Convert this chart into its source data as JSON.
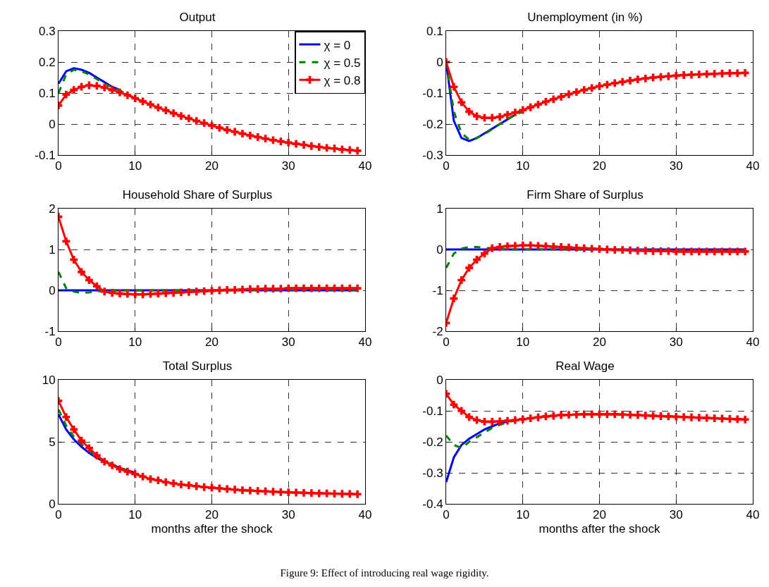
{
  "chart_data": [
    {
      "type": "line",
      "title": "Output",
      "x": [
        0,
        1,
        2,
        3,
        4,
        5,
        6,
        7,
        8,
        9,
        10,
        11,
        12,
        13,
        14,
        15,
        16,
        17,
        18,
        19,
        20,
        21,
        22,
        23,
        24,
        25,
        26,
        27,
        28,
        29,
        30,
        31,
        32,
        33,
        34,
        35,
        36,
        37,
        38,
        39
      ],
      "xlim": [
        0,
        40
      ],
      "xticks": [
        0,
        10,
        20,
        30,
        40
      ],
      "ylim": [
        -0.1,
        0.3
      ],
      "yticks": [
        -0.1,
        0,
        0.1,
        0.2,
        0.3
      ],
      "grid": true,
      "legend": "top right",
      "series": [
        {
          "name": "χ = 0",
          "color": "#0000ff",
          "line_style": "solid",
          "marker": "none",
          "x": [
            0,
            1,
            2,
            3,
            4,
            5,
            6,
            7,
            8
          ],
          "values": [
            0.13,
            0.17,
            0.18,
            0.175,
            0.165,
            0.15,
            0.135,
            0.12,
            0.11
          ]
        },
        {
          "name": "χ = 0.5",
          "color": "#008000",
          "line_style": "dashed",
          "marker": "none",
          "x": [
            0,
            1,
            2,
            3,
            4,
            5,
            6,
            7,
            8,
            10
          ],
          "values": [
            0.1,
            0.16,
            0.175,
            0.17,
            0.16,
            0.145,
            0.13,
            0.118,
            0.108,
            0.083
          ]
        },
        {
          "name": "χ = 0.8",
          "color": "#ff0000",
          "line_style": "solid",
          "marker": "cross",
          "values": [
            0.06,
            0.095,
            0.11,
            0.12,
            0.125,
            0.123,
            0.118,
            0.11,
            0.102,
            0.093,
            0.083,
            0.073,
            0.063,
            0.053,
            0.044,
            0.035,
            0.026,
            0.018,
            0.01,
            0.003,
            -0.005,
            -0.012,
            -0.019,
            -0.025,
            -0.031,
            -0.037,
            -0.042,
            -0.047,
            -0.052,
            -0.056,
            -0.06,
            -0.064,
            -0.067,
            -0.071,
            -0.074,
            -0.077,
            -0.079,
            -0.082,
            -0.084,
            -0.086
          ]
        }
      ]
    },
    {
      "type": "line",
      "title": "Unemployment (in %)",
      "x": [
        0,
        1,
        2,
        3,
        4,
        5,
        6,
        7,
        8,
        9,
        10,
        11,
        12,
        13,
        14,
        15,
        16,
        17,
        18,
        19,
        20,
        21,
        22,
        23,
        24,
        25,
        26,
        27,
        28,
        29,
        30,
        31,
        32,
        33,
        34,
        35,
        36,
        37,
        38,
        39
      ],
      "xlim": [
        0,
        40
      ],
      "xticks": [
        0,
        10,
        20,
        30,
        40
      ],
      "ylim": [
        -0.3,
        0.1
      ],
      "yticks": [
        -0.3,
        -0.2,
        -0.1,
        0,
        0.1
      ],
      "grid": true,
      "series": [
        {
          "color": "#0000ff",
          "line_style": "solid",
          "marker": "none",
          "x": [
            0,
            1,
            2,
            3,
            4,
            5,
            6,
            7,
            8,
            9
          ],
          "values": [
            0,
            -0.19,
            -0.245,
            -0.255,
            -0.245,
            -0.23,
            -0.215,
            -0.2,
            -0.185,
            -0.17
          ]
        },
        {
          "color": "#008000",
          "line_style": "dashed",
          "marker": "none",
          "x": [
            0,
            1,
            2,
            3,
            4,
            5,
            6,
            7,
            8,
            9,
            10
          ],
          "values": [
            0,
            -0.16,
            -0.23,
            -0.25,
            -0.245,
            -0.232,
            -0.217,
            -0.2,
            -0.185,
            -0.17,
            -0.16
          ]
        },
        {
          "color": "#ff0000",
          "line_style": "solid",
          "marker": "cross",
          "values": [
            0,
            -0.08,
            -0.13,
            -0.16,
            -0.175,
            -0.18,
            -0.18,
            -0.177,
            -0.17,
            -0.163,
            -0.155,
            -0.146,
            -0.137,
            -0.128,
            -0.12,
            -0.112,
            -0.104,
            -0.097,
            -0.09,
            -0.084,
            -0.078,
            -0.073,
            -0.068,
            -0.064,
            -0.06,
            -0.056,
            -0.053,
            -0.05,
            -0.048,
            -0.046,
            -0.044,
            -0.042,
            -0.041,
            -0.04,
            -0.039,
            -0.038,
            -0.037,
            -0.036,
            -0.036,
            -0.035
          ]
        }
      ]
    },
    {
      "type": "line",
      "title": "Household Share of Surplus",
      "x": [
        0,
        1,
        2,
        3,
        4,
        5,
        6,
        7,
        8,
        9,
        10,
        11,
        12,
        13,
        14,
        15,
        16,
        17,
        18,
        19,
        20,
        21,
        22,
        23,
        24,
        25,
        26,
        27,
        28,
        29,
        30,
        31,
        32,
        33,
        34,
        35,
        36,
        37,
        38,
        39
      ],
      "xlim": [
        0,
        40
      ],
      "xticks": [
        0,
        10,
        20,
        30,
        40
      ],
      "ylim": [
        -1,
        2
      ],
      "yticks": [
        -1,
        0,
        1,
        2
      ],
      "grid": true,
      "series": [
        {
          "color": "#0000ff",
          "line_style": "solid",
          "marker": "none",
          "x": [
            0,
            10,
            20,
            30,
            39
          ],
          "values": [
            0,
            0,
            0,
            0,
            0
          ]
        },
        {
          "color": "#008000",
          "line_style": "dashed",
          "marker": "none",
          "x": [
            0,
            1,
            2,
            3,
            4,
            5,
            6,
            8,
            10,
            20,
            30,
            39
          ],
          "values": [
            0.45,
            0.05,
            -0.03,
            -0.06,
            -0.05,
            -0.03,
            -0.01,
            0,
            0,
            0,
            0.02,
            0.02
          ]
        },
        {
          "color": "#ff0000",
          "line_style": "solid",
          "marker": "cross",
          "values": [
            1.8,
            1.2,
            0.75,
            0.45,
            0.25,
            0.1,
            -0.03,
            -0.06,
            -0.08,
            -0.09,
            -0.1,
            -0.1,
            -0.09,
            -0.08,
            -0.07,
            -0.06,
            -0.05,
            -0.04,
            -0.03,
            -0.02,
            -0.01,
            0,
            0.01,
            0.01,
            0.02,
            0.03,
            0.03,
            0.04,
            0.04,
            0.04,
            0.05,
            0.05,
            0.05,
            0.05,
            0.05,
            0.05,
            0.05,
            0.05,
            0.05,
            0.05
          ]
        }
      ]
    },
    {
      "type": "line",
      "title": "Firm Share of Surplus",
      "x": [
        0,
        1,
        2,
        3,
        4,
        5,
        6,
        7,
        8,
        9,
        10,
        11,
        12,
        13,
        14,
        15,
        16,
        17,
        18,
        19,
        20,
        21,
        22,
        23,
        24,
        25,
        26,
        27,
        28,
        29,
        30,
        31,
        32,
        33,
        34,
        35,
        36,
        37,
        38,
        39
      ],
      "xlim": [
        0,
        40
      ],
      "xticks": [
        0,
        10,
        20,
        30,
        40
      ],
      "ylim": [
        -2,
        1
      ],
      "yticks": [
        -2,
        -1,
        0,
        1
      ],
      "grid": true,
      "series": [
        {
          "color": "#0000ff",
          "line_style": "solid",
          "marker": "none",
          "x": [
            0,
            10,
            20,
            30,
            39
          ],
          "values": [
            0,
            0,
            0,
            0,
            0
          ]
        },
        {
          "color": "#008000",
          "line_style": "dashed",
          "marker": "none",
          "x": [
            0,
            1,
            2,
            3,
            4,
            5,
            6,
            8,
            10,
            20,
            30,
            39
          ],
          "values": [
            -0.45,
            -0.1,
            0.02,
            0.06,
            0.06,
            0.04,
            0.02,
            0,
            0,
            0,
            -0.02,
            -0.02
          ]
        },
        {
          "color": "#ff0000",
          "line_style": "solid",
          "marker": "cross",
          "values": [
            -1.8,
            -1.2,
            -0.75,
            -0.45,
            -0.25,
            -0.1,
            0.03,
            0.06,
            0.08,
            0.09,
            0.1,
            0.1,
            0.09,
            0.08,
            0.07,
            0.06,
            0.05,
            0.04,
            0.03,
            0.02,
            0.01,
            0,
            -0.01,
            -0.01,
            -0.02,
            -0.03,
            -0.03,
            -0.04,
            -0.04,
            -0.04,
            -0.05,
            -0.05,
            -0.05,
            -0.05,
            -0.05,
            -0.05,
            -0.05,
            -0.05,
            -0.05,
            -0.05
          ]
        }
      ]
    },
    {
      "type": "line",
      "title": "Total Surplus",
      "xlabel": "months after the shock",
      "x": [
        0,
        1,
        2,
        3,
        4,
        5,
        6,
        7,
        8,
        9,
        10,
        11,
        12,
        13,
        14,
        15,
        16,
        17,
        18,
        19,
        20,
        21,
        22,
        23,
        24,
        25,
        26,
        27,
        28,
        29,
        30,
        31,
        32,
        33,
        34,
        35,
        36,
        37,
        38,
        39
      ],
      "xlim": [
        0,
        40
      ],
      "xticks": [
        0,
        10,
        20,
        30,
        40
      ],
      "ylim": [
        0,
        10
      ],
      "yticks": [
        0,
        5,
        10
      ],
      "grid": true,
      "series": [
        {
          "color": "#0000ff",
          "line_style": "solid",
          "marker": "none",
          "x": [
            0,
            1,
            2,
            3,
            4,
            5,
            6,
            8,
            10
          ],
          "values": [
            7.2,
            6,
            5.2,
            4.6,
            4.1,
            3.7,
            3.4,
            2.9,
            2.5
          ]
        },
        {
          "color": "#008000",
          "line_style": "dashed",
          "marker": "none",
          "x": [
            0,
            1,
            2,
            3,
            4,
            5,
            6,
            8,
            10
          ],
          "values": [
            7.6,
            6.3,
            5.4,
            4.8,
            4.3,
            3.8,
            3.5,
            2.9,
            2.5
          ]
        },
        {
          "color": "#ff0000",
          "line_style": "solid",
          "marker": "cross",
          "values": [
            8.3,
            7,
            6,
            5.1,
            4.5,
            3.9,
            3.4,
            3.1,
            2.8,
            2.6,
            2.4,
            2.2,
            2,
            1.9,
            1.75,
            1.65,
            1.55,
            1.5,
            1.42,
            1.35,
            1.3,
            1.25,
            1.2,
            1.15,
            1.1,
            1.07,
            1.04,
            1.01,
            0.98,
            0.95,
            0.93,
            0.91,
            0.89,
            0.87,
            0.85,
            0.84,
            0.82,
            0.81,
            0.8,
            0.78
          ]
        }
      ]
    },
    {
      "type": "line",
      "title": "Real Wage",
      "xlabel": "months after the shock",
      "annotations": [
        "Figure 9: Effect of introducing real wage rigidity."
      ],
      "x": [
        0,
        1,
        2,
        3,
        4,
        5,
        6,
        7,
        8,
        9,
        10,
        11,
        12,
        13,
        14,
        15,
        16,
        17,
        18,
        19,
        20,
        21,
        22,
        23,
        24,
        25,
        26,
        27,
        28,
        29,
        30,
        31,
        32,
        33,
        34,
        35,
        36,
        37,
        38,
        39
      ],
      "xlim": [
        0,
        40
      ],
      "xticks": [
        0,
        10,
        20,
        30,
        40
      ],
      "ylim": [
        -0.4,
        0
      ],
      "yticks": [
        -0.4,
        -0.3,
        -0.2,
        -0.1,
        0
      ],
      "grid": true,
      "series": [
        {
          "color": "#0000ff",
          "line_style": "solid",
          "marker": "none",
          "x": [
            0,
            1,
            2,
            3,
            4,
            5,
            6,
            7,
            8
          ],
          "values": [
            -0.33,
            -0.25,
            -0.21,
            -0.19,
            -0.175,
            -0.16,
            -0.15,
            -0.14,
            -0.135
          ]
        },
        {
          "color": "#008000",
          "line_style": "dashed",
          "marker": "none",
          "x": [
            0,
            1,
            2,
            3,
            4,
            5,
            6,
            7,
            8,
            10
          ],
          "values": [
            -0.18,
            -0.21,
            -0.22,
            -0.2,
            -0.185,
            -0.17,
            -0.155,
            -0.145,
            -0.137,
            -0.125
          ]
        },
        {
          "color": "#ff0000",
          "line_style": "solid",
          "marker": "cross",
          "values": [
            -0.045,
            -0.08,
            -0.1,
            -0.12,
            -0.13,
            -0.135,
            -0.135,
            -0.134,
            -0.132,
            -0.13,
            -0.127,
            -0.124,
            -0.121,
            -0.118,
            -0.116,
            -0.114,
            -0.113,
            -0.112,
            -0.111,
            -0.111,
            -0.111,
            -0.111,
            -0.111,
            -0.112,
            -0.113,
            -0.114,
            -0.115,
            -0.116,
            -0.117,
            -0.118,
            -0.119,
            -0.12,
            -0.121,
            -0.122,
            -0.123,
            -0.124,
            -0.125,
            -0.126,
            -0.127,
            -0.128
          ]
        }
      ]
    }
  ]
}
